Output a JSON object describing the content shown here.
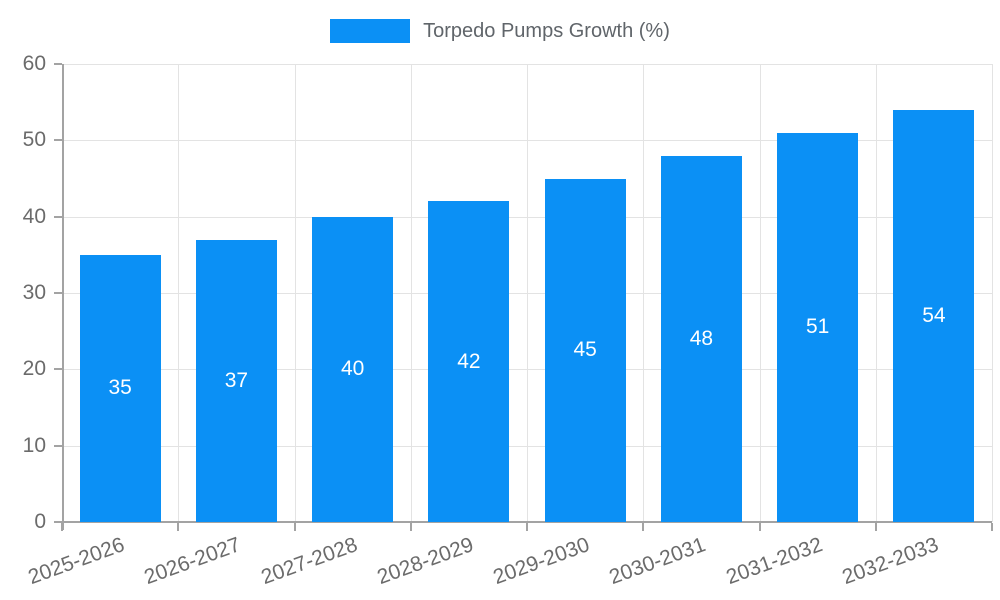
{
  "chart_data": {
    "type": "bar",
    "title": "Torpedo Pumps Growth (%)",
    "categories": [
      "2025-2026",
      "2026-2027",
      "2027-2028",
      "2028-2029",
      "2029-2030",
      "2030-2031",
      "2031-2032",
      "2032-2033"
    ],
    "values": [
      35,
      37,
      40,
      42,
      45,
      48,
      51,
      54
    ],
    "xlabel": "",
    "ylabel": "",
    "ylim": [
      0,
      60
    ],
    "ytick_step": 10,
    "ytick_labels": [
      "0",
      "10",
      "20",
      "30",
      "40",
      "50",
      "60"
    ],
    "grid": true,
    "legend_position": "top-center",
    "value_labels_position": "inside-center"
  },
  "colors": {
    "bar": "#0b90f5",
    "grid": "#e3e3e3",
    "axis": "#a3a3a3",
    "tick_label": "#6b6b6b",
    "legend_text": "#60656a",
    "value_label": "#ffffff"
  }
}
